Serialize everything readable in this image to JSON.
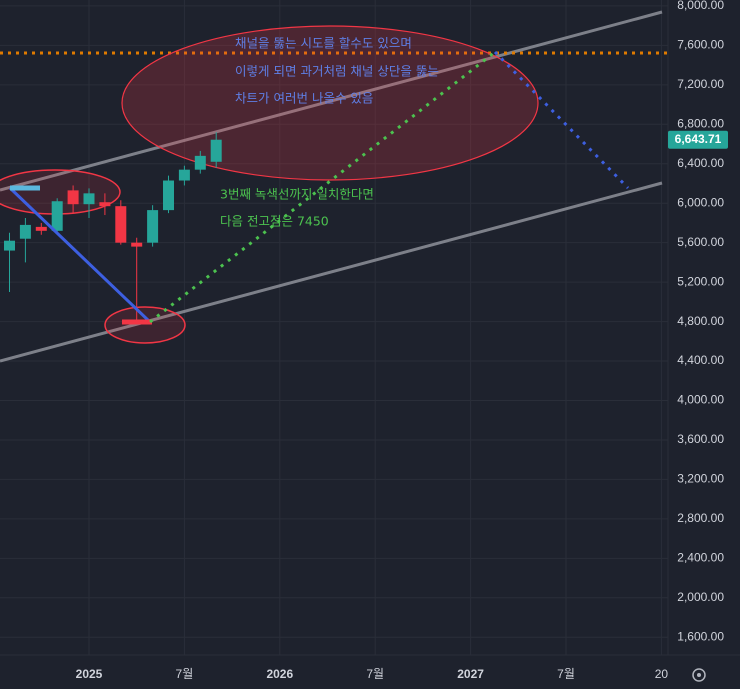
{
  "chart_data": {
    "type": "candlestick",
    "categories": [
      null,
      null,
      null,
      null,
      null,
      "2025",
      null,
      null,
      null,
      null,
      null,
      "7월",
      null,
      null,
      null,
      null,
      null,
      "2026",
      null,
      null,
      null,
      null,
      null,
      "7월",
      null,
      null,
      null,
      null,
      null,
      "2027",
      null,
      null,
      null,
      null,
      null,
      "7월",
      null,
      null,
      null,
      null,
      null,
      "20"
    ],
    "open": [
      5520,
      5640,
      5760,
      5720,
      6130,
      5990,
      6010,
      5970,
      5600,
      5600,
      5930,
      6230,
      6340,
      6420,
      null,
      null,
      null,
      null,
      null,
      null,
      null,
      null,
      null,
      null,
      null,
      null,
      null,
      null,
      null,
      null,
      null,
      null,
      null,
      null,
      null,
      null,
      null,
      null,
      null,
      null,
      null,
      null
    ],
    "high": [
      5700,
      5850,
      5800,
      6050,
      6180,
      6150,
      6100,
      6030,
      5650,
      5980,
      6280,
      6380,
      6530,
      6720,
      null,
      null,
      null,
      null,
      null,
      null,
      null,
      null,
      null,
      null,
      null,
      null,
      null,
      null,
      null,
      null,
      null,
      null,
      null,
      null,
      null,
      null,
      null,
      null,
      null,
      null,
      null,
      null
    ],
    "low": [
      5100,
      5400,
      5680,
      5700,
      5900,
      5850,
      5880,
      5580,
      4800,
      5560,
      5900,
      6180,
      6300,
      6360,
      null,
      null,
      null,
      null,
      null,
      null,
      null,
      null,
      null,
      null,
      null,
      null,
      null,
      null,
      null,
      null,
      null,
      null,
      null,
      null,
      null,
      null,
      null,
      null,
      null,
      null,
      null,
      null
    ],
    "close": [
      5620,
      5780,
      5720,
      6020,
      5990,
      6100,
      5970,
      5600,
      5560,
      5930,
      6230,
      6340,
      6480,
      6643.71,
      null,
      null,
      null,
      null,
      null,
      null,
      null,
      null,
      null,
      null,
      null,
      null,
      null,
      null,
      null,
      null,
      null,
      null,
      null,
      null,
      null,
      null,
      null,
      null,
      null,
      null,
      null,
      null
    ],
    "up_color": "#26a69a",
    "down_color": "#f23645",
    "ylim": [
      1420,
      8060
    ],
    "yticks": [
      {
        "value": 1600,
        "label": "1,600.00"
      },
      {
        "value": 2000,
        "label": "2,000.00"
      },
      {
        "value": 2400,
        "label": "2,400.00"
      },
      {
        "value": 2800,
        "label": "2,800.00"
      },
      {
        "value": 3200,
        "label": "3,200.00"
      },
      {
        "value": 3600,
        "label": "3,600.00"
      },
      {
        "value": 4000,
        "label": "4,000.00"
      },
      {
        "value": 4400,
        "label": "4,400.00"
      },
      {
        "value": 4800,
        "label": "4,800.00"
      },
      {
        "value": 5200,
        "label": "5,200.00"
      },
      {
        "value": 5600,
        "label": "5,600.00"
      },
      {
        "value": 6000,
        "label": "6,000.00"
      },
      {
        "value": 6400,
        "label": "6,400.00"
      },
      {
        "value": 6800,
        "label": "6,800.00"
      },
      {
        "value": 7200,
        "label": "7,200.00"
      },
      {
        "value": 7600,
        "label": "7,600.00"
      },
      {
        "value": 8000,
        "label": "8,000.00"
      }
    ],
    "last_price": {
      "value": 6643.71,
      "label": "6,643.71"
    },
    "grid": true,
    "annotations": {
      "channel_note": [
        "채널을 뚫는 시도를 할수도 있으며",
        "이렇게 되면 과거처럼 채널 상단을 뚫는",
        "차트가 여러번 나올수 있음"
      ],
      "target_note": [
        "3번째 녹색선까지 일치한다면",
        "다음 전고점은 7450"
      ]
    }
  }
}
